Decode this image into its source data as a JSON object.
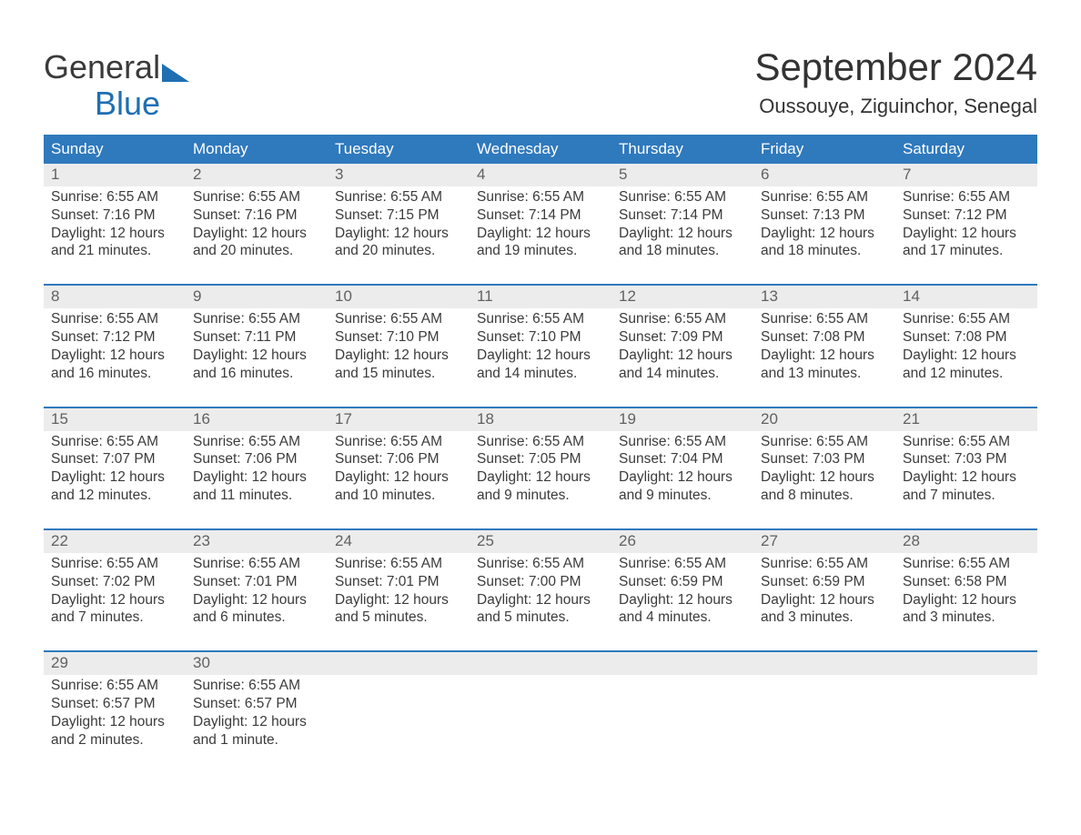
{
  "brand": {
    "part1": "General",
    "part2": "Blue"
  },
  "title": "September 2024",
  "location": "Oussouye, Ziguinchor, Senegal",
  "colors": {
    "header_bg": "#2f79bd",
    "daynum_bg": "#ececec",
    "separator": "#2f79bd",
    "text": "#333333",
    "daynum_text": "#616161",
    "white": "#ffffff",
    "logo_blue": "#1f6fb2"
  },
  "weekdays": [
    "Sunday",
    "Monday",
    "Tuesday",
    "Wednesday",
    "Thursday",
    "Friday",
    "Saturday"
  ],
  "weeks": [
    [
      {
        "n": "1",
        "sunrise": "Sunrise: 6:55 AM",
        "sunset": "Sunset: 7:16 PM",
        "d1": "Daylight: 12 hours",
        "d2": "and 21 minutes."
      },
      {
        "n": "2",
        "sunrise": "Sunrise: 6:55 AM",
        "sunset": "Sunset: 7:16 PM",
        "d1": "Daylight: 12 hours",
        "d2": "and 20 minutes."
      },
      {
        "n": "3",
        "sunrise": "Sunrise: 6:55 AM",
        "sunset": "Sunset: 7:15 PM",
        "d1": "Daylight: 12 hours",
        "d2": "and 20 minutes."
      },
      {
        "n": "4",
        "sunrise": "Sunrise: 6:55 AM",
        "sunset": "Sunset: 7:14 PM",
        "d1": "Daylight: 12 hours",
        "d2": "and 19 minutes."
      },
      {
        "n": "5",
        "sunrise": "Sunrise: 6:55 AM",
        "sunset": "Sunset: 7:14 PM",
        "d1": "Daylight: 12 hours",
        "d2": "and 18 minutes."
      },
      {
        "n": "6",
        "sunrise": "Sunrise: 6:55 AM",
        "sunset": "Sunset: 7:13 PM",
        "d1": "Daylight: 12 hours",
        "d2": "and 18 minutes."
      },
      {
        "n": "7",
        "sunrise": "Sunrise: 6:55 AM",
        "sunset": "Sunset: 7:12 PM",
        "d1": "Daylight: 12 hours",
        "d2": "and 17 minutes."
      }
    ],
    [
      {
        "n": "8",
        "sunrise": "Sunrise: 6:55 AM",
        "sunset": "Sunset: 7:12 PM",
        "d1": "Daylight: 12 hours",
        "d2": "and 16 minutes."
      },
      {
        "n": "9",
        "sunrise": "Sunrise: 6:55 AM",
        "sunset": "Sunset: 7:11 PM",
        "d1": "Daylight: 12 hours",
        "d2": "and 16 minutes."
      },
      {
        "n": "10",
        "sunrise": "Sunrise: 6:55 AM",
        "sunset": "Sunset: 7:10 PM",
        "d1": "Daylight: 12 hours",
        "d2": "and 15 minutes."
      },
      {
        "n": "11",
        "sunrise": "Sunrise: 6:55 AM",
        "sunset": "Sunset: 7:10 PM",
        "d1": "Daylight: 12 hours",
        "d2": "and 14 minutes."
      },
      {
        "n": "12",
        "sunrise": "Sunrise: 6:55 AM",
        "sunset": "Sunset: 7:09 PM",
        "d1": "Daylight: 12 hours",
        "d2": "and 14 minutes."
      },
      {
        "n": "13",
        "sunrise": "Sunrise: 6:55 AM",
        "sunset": "Sunset: 7:08 PM",
        "d1": "Daylight: 12 hours",
        "d2": "and 13 minutes."
      },
      {
        "n": "14",
        "sunrise": "Sunrise: 6:55 AM",
        "sunset": "Sunset: 7:08 PM",
        "d1": "Daylight: 12 hours",
        "d2": "and 12 minutes."
      }
    ],
    [
      {
        "n": "15",
        "sunrise": "Sunrise: 6:55 AM",
        "sunset": "Sunset: 7:07 PM",
        "d1": "Daylight: 12 hours",
        "d2": "and 12 minutes."
      },
      {
        "n": "16",
        "sunrise": "Sunrise: 6:55 AM",
        "sunset": "Sunset: 7:06 PM",
        "d1": "Daylight: 12 hours",
        "d2": "and 11 minutes."
      },
      {
        "n": "17",
        "sunrise": "Sunrise: 6:55 AM",
        "sunset": "Sunset: 7:06 PM",
        "d1": "Daylight: 12 hours",
        "d2": "and 10 minutes."
      },
      {
        "n": "18",
        "sunrise": "Sunrise: 6:55 AM",
        "sunset": "Sunset: 7:05 PM",
        "d1": "Daylight: 12 hours",
        "d2": "and 9 minutes."
      },
      {
        "n": "19",
        "sunrise": "Sunrise: 6:55 AM",
        "sunset": "Sunset: 7:04 PM",
        "d1": "Daylight: 12 hours",
        "d2": "and 9 minutes."
      },
      {
        "n": "20",
        "sunrise": "Sunrise: 6:55 AM",
        "sunset": "Sunset: 7:03 PM",
        "d1": "Daylight: 12 hours",
        "d2": "and 8 minutes."
      },
      {
        "n": "21",
        "sunrise": "Sunrise: 6:55 AM",
        "sunset": "Sunset: 7:03 PM",
        "d1": "Daylight: 12 hours",
        "d2": "and 7 minutes."
      }
    ],
    [
      {
        "n": "22",
        "sunrise": "Sunrise: 6:55 AM",
        "sunset": "Sunset: 7:02 PM",
        "d1": "Daylight: 12 hours",
        "d2": "and 7 minutes."
      },
      {
        "n": "23",
        "sunrise": "Sunrise: 6:55 AM",
        "sunset": "Sunset: 7:01 PM",
        "d1": "Daylight: 12 hours",
        "d2": "and 6 minutes."
      },
      {
        "n": "24",
        "sunrise": "Sunrise: 6:55 AM",
        "sunset": "Sunset: 7:01 PM",
        "d1": "Daylight: 12 hours",
        "d2": "and 5 minutes."
      },
      {
        "n": "25",
        "sunrise": "Sunrise: 6:55 AM",
        "sunset": "Sunset: 7:00 PM",
        "d1": "Daylight: 12 hours",
        "d2": "and 5 minutes."
      },
      {
        "n": "26",
        "sunrise": "Sunrise: 6:55 AM",
        "sunset": "Sunset: 6:59 PM",
        "d1": "Daylight: 12 hours",
        "d2": "and 4 minutes."
      },
      {
        "n": "27",
        "sunrise": "Sunrise: 6:55 AM",
        "sunset": "Sunset: 6:59 PM",
        "d1": "Daylight: 12 hours",
        "d2": "and 3 minutes."
      },
      {
        "n": "28",
        "sunrise": "Sunrise: 6:55 AM",
        "sunset": "Sunset: 6:58 PM",
        "d1": "Daylight: 12 hours",
        "d2": "and 3 minutes."
      }
    ],
    [
      {
        "n": "29",
        "sunrise": "Sunrise: 6:55 AM",
        "sunset": "Sunset: 6:57 PM",
        "d1": "Daylight: 12 hours",
        "d2": "and 2 minutes."
      },
      {
        "n": "30",
        "sunrise": "Sunrise: 6:55 AM",
        "sunset": "Sunset: 6:57 PM",
        "d1": "Daylight: 12 hours",
        "d2": "and 1 minute."
      },
      {
        "n": "",
        "empty": true
      },
      {
        "n": "",
        "empty": true
      },
      {
        "n": "",
        "empty": true
      },
      {
        "n": "",
        "empty": true
      },
      {
        "n": "",
        "empty": true
      }
    ]
  ]
}
